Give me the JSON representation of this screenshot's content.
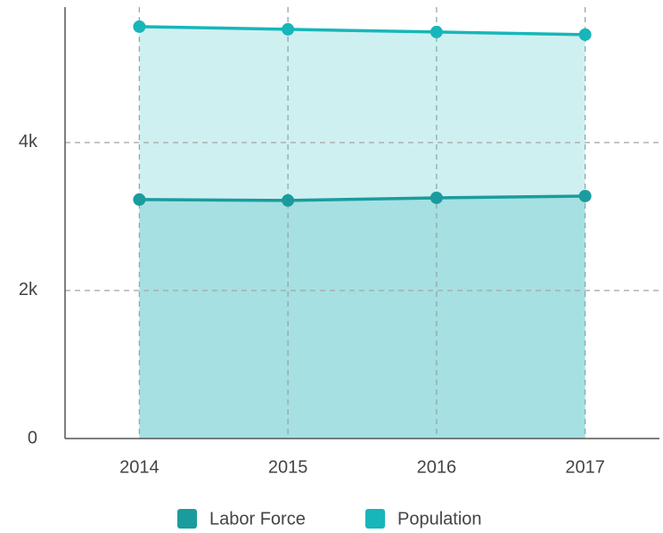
{
  "chart_data": {
    "type": "area",
    "categories": [
      "2014",
      "2015",
      "2016",
      "2017"
    ],
    "series": [
      {
        "name": "Labor Force",
        "color": "#1a9c9e",
        "values": [
          3229,
          3217,
          3253,
          3277
        ]
      },
      {
        "name": "Population",
        "color": "#17b6ba",
        "values": [
          5566,
          5530,
          5494,
          5458
        ]
      }
    ],
    "ylim": [
      0,
      5830
    ],
    "yticks": [
      0,
      {
        "value": 2000,
        "label": "2k"
      },
      {
        "value": 4000,
        "label": "4k"
      }
    ],
    "grid": true
  }
}
